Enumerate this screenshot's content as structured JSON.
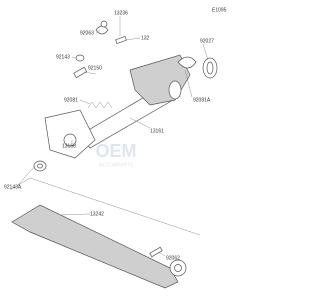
{
  "diagram_id": "E1095",
  "labels": [
    "13236",
    "92063",
    "132",
    "92143",
    "92150",
    "92027",
    "92081",
    "92081A",
    "13161",
    "13168",
    "92143A",
    "13242",
    "92062"
  ],
  "watermark": {
    "brand": "OEM",
    "subtitle": "MOTORPARTS"
  }
}
